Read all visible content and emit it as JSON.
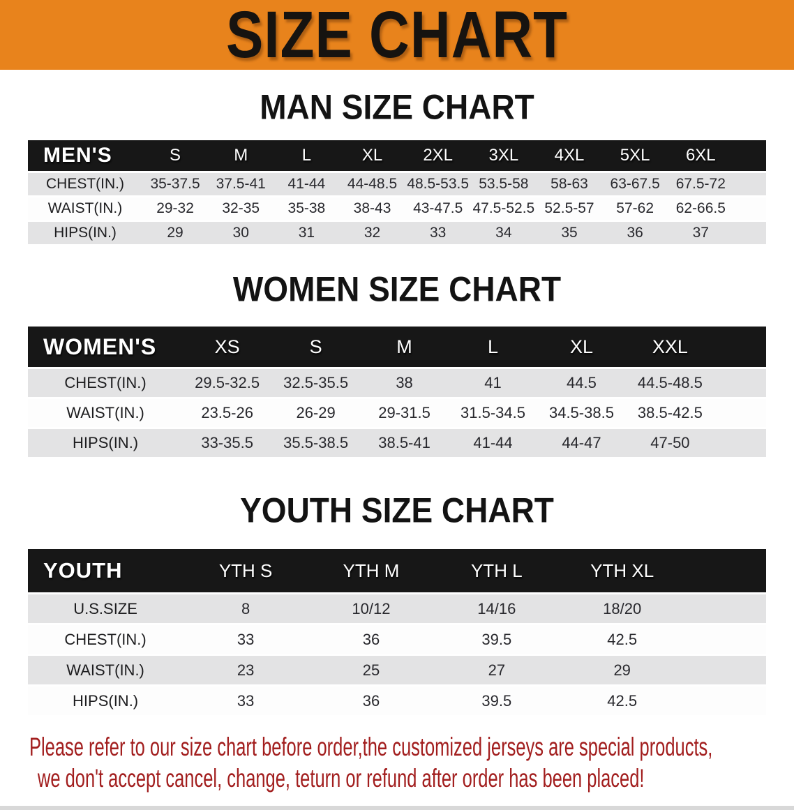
{
  "banner": {
    "title": "SIZE CHART"
  },
  "colors": {
    "banner_orange": "#E8831C",
    "header_bar_black": "#171717",
    "row_gray": "#E3E3E4",
    "disclaimer_red": "#A21E1E"
  },
  "sections": [
    {
      "heading": "MAN SIZE CHART",
      "label": "MEN'S",
      "sizes": [
        "S",
        "M",
        "L",
        "XL",
        "2XL",
        "3XL",
        "4XL",
        "5XL",
        "6XL"
      ],
      "rows": [
        {
          "label": "CHEST(IN.)",
          "values": [
            "35-37.5",
            "37.5-41",
            "41-44",
            "44-48.5",
            "48.5-53.5",
            "53.5-58",
            "58-63",
            "63-67.5",
            "67.5-72"
          ]
        },
        {
          "label": "WAIST(IN.)",
          "values": [
            "29-32",
            "32-35",
            "35-38",
            "38-43",
            "43-47.5",
            "47.5-52.5",
            "52.5-57",
            "57-62",
            "62-66.5"
          ]
        },
        {
          "label": "HIPS(IN.)",
          "values": [
            "29",
            "30",
            "31",
            "32",
            "33",
            "34",
            "35",
            "36",
            "37"
          ]
        }
      ]
    },
    {
      "heading": "WOMEN SIZE CHART",
      "label": "WOMEN'S",
      "sizes": [
        "XS",
        "S",
        "M",
        "L",
        "XL",
        "XXL"
      ],
      "rows": [
        {
          "label": "CHEST(IN.)",
          "values": [
            "29.5-32.5",
            "32.5-35.5",
            "38",
            "41",
            "44.5",
            "44.5-48.5"
          ]
        },
        {
          "label": "WAIST(IN.)",
          "values": [
            "23.5-26",
            "26-29",
            "29-31.5",
            "31.5-34.5",
            "34.5-38.5",
            "38.5-42.5"
          ]
        },
        {
          "label": "HIPS(IN.)",
          "values": [
            "33-35.5",
            "35.5-38.5",
            "38.5-41",
            "41-44",
            "44-47",
            "47-50"
          ]
        }
      ]
    },
    {
      "heading": "YOUTH SIZE CHART",
      "label": "YOUTH",
      "sizes": [
        "YTH S",
        "YTH M",
        "YTH L",
        "YTH XL"
      ],
      "rows": [
        {
          "label": "U.S.SIZE",
          "values": [
            "8",
            "10/12",
            "14/16",
            "18/20"
          ]
        },
        {
          "label": "CHEST(IN.)",
          "values": [
            "33",
            "36",
            "39.5",
            "42.5"
          ]
        },
        {
          "label": "WAIST(IN.)",
          "values": [
            "23",
            "25",
            "27",
            "29"
          ]
        },
        {
          "label": "HIPS(IN.)",
          "values": [
            "33",
            "36",
            "39.5",
            "42.5"
          ]
        }
      ]
    }
  ],
  "footer": {
    "line1": "Please refer to our size chart before order,the customized jerseys are special products,",
    "line2": "we don't accept cancel, change, teturn or refund after order has been placed!"
  }
}
